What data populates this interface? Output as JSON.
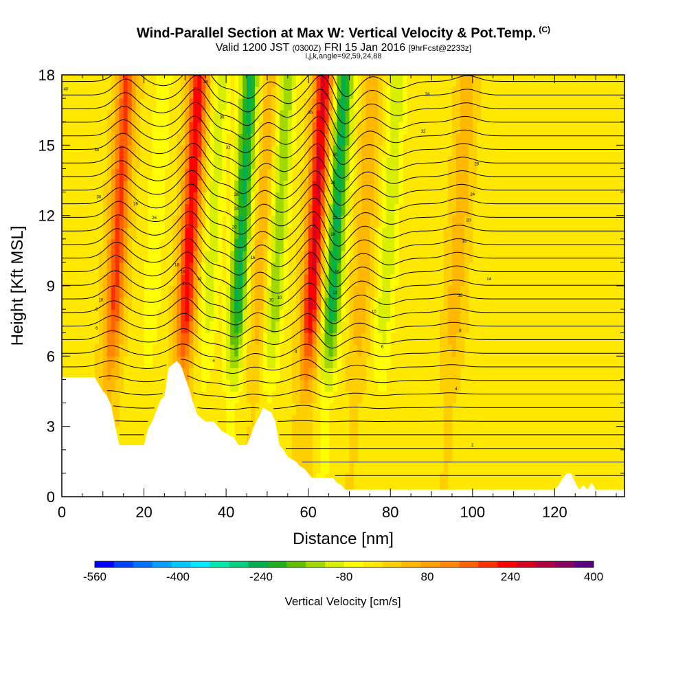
{
  "header": {
    "title": "Wind-Parallel Section at Max W: Vertical Velocity & Pot.Temp.",
    "copyright": "(C)",
    "valid_prefix": "Valid 1200 JST",
    "valid_utc": "(0300Z)",
    "valid_date": "FRI 15 Jan 2016",
    "forecast_info": "[9hrFcst@2233z]",
    "subline": "i,j,k,angle=92,59,24,88"
  },
  "chart_data": {
    "type": "heatmap",
    "title": "Wind-Parallel Section at Max W: Vertical Velocity & Pot.Temp.",
    "xlabel": "Distance [nm]",
    "ylabel": "Height [Kft MSL]",
    "xlim": [
      0,
      137
    ],
    "ylim": [
      0,
      18
    ],
    "xticks": [
      0,
      20,
      40,
      60,
      80,
      100,
      120
    ],
    "yticks": [
      0,
      3,
      6,
      9,
      12,
      15,
      18
    ],
    "colorbar": {
      "label": "Vertical Velocity [cm/s]",
      "min": -560,
      "max": 400,
      "step": 40,
      "tick_labels": [
        -560,
        -400,
        -240,
        -80,
        80,
        240,
        400
      ],
      "colors": [
        "#0000ff",
        "#0040ff",
        "#0070ff",
        "#00a0ff",
        "#00c8ff",
        "#00e8ff",
        "#00e8b0",
        "#00d080",
        "#00b050",
        "#20b020",
        "#60c000",
        "#a0d800",
        "#d8f000",
        "#ffff00",
        "#ffe800",
        "#ffd000",
        "#ffb800",
        "#ffa000",
        "#ff8800",
        "#ff6000",
        "#ff3000",
        "#ff0000",
        "#d80020",
        "#b00040",
        "#880060",
        "#5a0080"
      ]
    },
    "waves": [
      {
        "x": 13,
        "w": 220
      },
      {
        "x": 22,
        "w": -60
      },
      {
        "x": 30.5,
        "w": 280
      },
      {
        "x": 36,
        "w": -90
      },
      {
        "x": 43,
        "w": -240
      },
      {
        "x": 48,
        "w": 80
      },
      {
        "x": 52,
        "w": -140
      },
      {
        "x": 61,
        "w": 300
      },
      {
        "x": 66,
        "w": -250
      },
      {
        "x": 73,
        "w": 80
      },
      {
        "x": 79,
        "w": -100
      },
      {
        "x": 96,
        "w": 80
      }
    ],
    "terrain": [
      [
        0,
        5.1
      ],
      [
        8,
        5.1
      ],
      [
        9,
        4.8
      ],
      [
        10,
        4.5
      ],
      [
        11,
        4.3
      ],
      [
        12,
        3.9
      ],
      [
        13,
        3.0
      ],
      [
        14,
        2.2
      ],
      [
        16,
        2.2
      ],
      [
        18,
        2.2
      ],
      [
        20,
        2.2
      ],
      [
        21,
        2.9
      ],
      [
        22,
        3.2
      ],
      [
        24,
        4.1
      ],
      [
        25,
        4.3
      ],
      [
        26,
        5.5
      ],
      [
        28,
        5.8
      ],
      [
        29,
        5.6
      ],
      [
        30,
        5.1
      ],
      [
        31,
        4.6
      ],
      [
        32,
        4.0
      ],
      [
        33,
        3.5
      ],
      [
        35,
        3.2
      ],
      [
        37,
        3.2
      ],
      [
        38,
        3.0
      ],
      [
        39,
        2.8
      ],
      [
        40,
        2.7
      ],
      [
        41,
        2.6
      ],
      [
        42,
        2.5
      ],
      [
        43,
        2.2
      ],
      [
        45,
        2.2
      ],
      [
        46,
        2.6
      ],
      [
        47,
        3.1
      ],
      [
        48,
        3.4
      ],
      [
        49,
        3.8
      ],
      [
        51,
        3.6
      ],
      [
        52,
        3.2
      ],
      [
        53,
        2.2
      ],
      [
        54,
        2.0
      ],
      [
        55,
        1.7
      ],
      [
        57,
        1.5
      ],
      [
        58,
        1.3
      ],
      [
        59,
        1.2
      ],
      [
        60,
        1.0
      ],
      [
        61,
        0.8
      ],
      [
        66,
        0.8
      ],
      [
        67,
        0.6
      ],
      [
        68,
        0.5
      ],
      [
        69,
        0.3
      ],
      [
        80,
        0.3
      ],
      [
        100,
        0.3
      ],
      [
        120,
        0.3
      ],
      [
        121,
        0.5
      ],
      [
        122,
        0.8
      ],
      [
        123,
        1.0
      ],
      [
        124,
        1.0
      ],
      [
        125,
        0.6
      ],
      [
        126,
        0.3
      ],
      [
        127,
        0.5
      ],
      [
        128,
        0.3
      ],
      [
        129,
        0.6
      ],
      [
        130,
        0.3
      ],
      [
        137,
        0.3
      ]
    ],
    "isentrope_labels": [
      {
        "x": 1,
        "y": 17.4,
        "text": "40"
      },
      {
        "x": 35,
        "y": 17.7,
        "text": "38"
      },
      {
        "x": 39,
        "y": 16.2,
        "text": "36"
      },
      {
        "x": 60.5,
        "y": 16.4,
        "text": "36"
      },
      {
        "x": 89,
        "y": 17.2,
        "text": "34"
      },
      {
        "x": 88,
        "y": 15.6,
        "text": "32"
      },
      {
        "x": 8.5,
        "y": 14.8,
        "text": "34"
      },
      {
        "x": 40.5,
        "y": 14.9,
        "text": "32"
      },
      {
        "x": 66.5,
        "y": 14.6,
        "text": "30"
      },
      {
        "x": 101,
        "y": 14.2,
        "text": "28"
      },
      {
        "x": 9,
        "y": 12.8,
        "text": "30"
      },
      {
        "x": 18,
        "y": 12.5,
        "text": "28"
      },
      {
        "x": 42.5,
        "y": 12.9,
        "text": "28"
      },
      {
        "x": 66,
        "y": 13.4,
        "text": "26"
      },
      {
        "x": 100,
        "y": 12.9,
        "text": "24"
      },
      {
        "x": 22.5,
        "y": 11.9,
        "text": "26"
      },
      {
        "x": 42.5,
        "y": 12.3,
        "text": "24"
      },
      {
        "x": 66.5,
        "y": 11.9,
        "text": "22"
      },
      {
        "x": 99,
        "y": 11.8,
        "text": "20"
      },
      {
        "x": 42,
        "y": 11.5,
        "text": "20"
      },
      {
        "x": 66,
        "y": 11.2,
        "text": "18"
      },
      {
        "x": 98,
        "y": 10.9,
        "text": "18"
      },
      {
        "x": 28,
        "y": 9.9,
        "text": "18"
      },
      {
        "x": 46.5,
        "y": 10.2,
        "text": "16"
      },
      {
        "x": 67,
        "y": 9.6,
        "text": "16"
      },
      {
        "x": 104,
        "y": 9.3,
        "text": "14"
      },
      {
        "x": 29.5,
        "y": 9.6,
        "text": "16"
      },
      {
        "x": 30,
        "y": 9.1,
        "text": "14"
      },
      {
        "x": 33.5,
        "y": 9.3,
        "text": "12"
      },
      {
        "x": 66.5,
        "y": 8.7,
        "text": "12"
      },
      {
        "x": 97,
        "y": 8.6,
        "text": "12"
      },
      {
        "x": 9.5,
        "y": 8.4,
        "text": "10"
      },
      {
        "x": 51,
        "y": 8.4,
        "text": "10"
      },
      {
        "x": 53,
        "y": 8.5,
        "text": "10"
      },
      {
        "x": 8.5,
        "y": 8.0,
        "text": "8"
      },
      {
        "x": 76,
        "y": 7.9,
        "text": "10"
      },
      {
        "x": 8.5,
        "y": 7.2,
        "text": "6"
      },
      {
        "x": 97,
        "y": 7.1,
        "text": "8"
      },
      {
        "x": 78,
        "y": 6.4,
        "text": "6"
      },
      {
        "x": 57,
        "y": 6.2,
        "text": "4"
      },
      {
        "x": 37,
        "y": 5.8,
        "text": "4"
      },
      {
        "x": 96,
        "y": 4.6,
        "text": "4"
      },
      {
        "x": 100,
        "y": 2.2,
        "text": "2"
      }
    ]
  }
}
